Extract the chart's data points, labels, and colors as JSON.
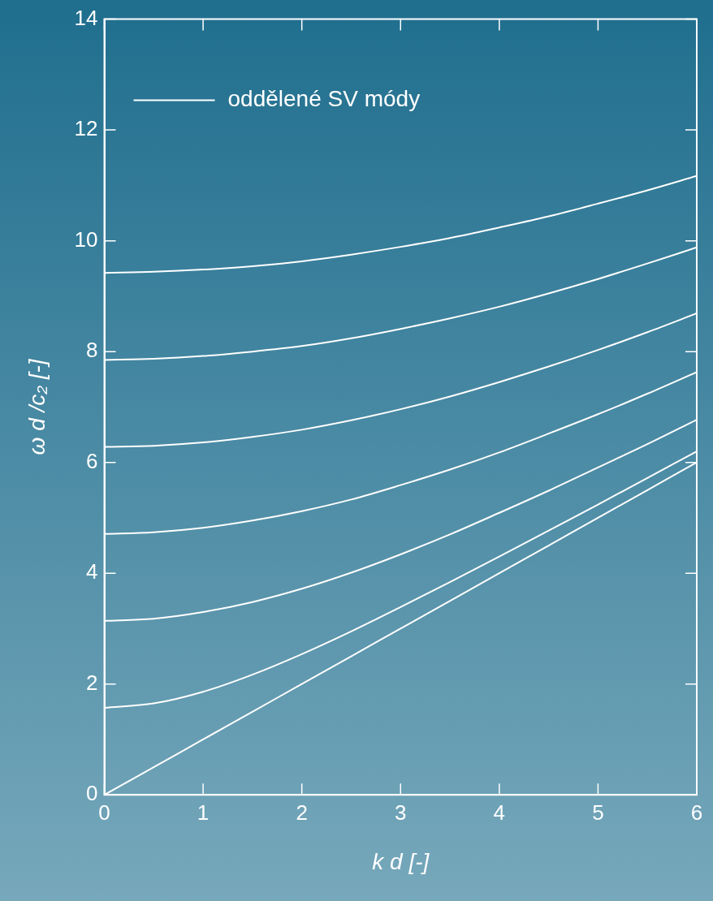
{
  "chart_data": {
    "type": "line",
    "xlabel": "k d [-]",
    "ylabel": "ω d /c₂ [-]",
    "x": [
      0,
      0.5,
      1,
      1.5,
      2,
      2.5,
      3,
      3.5,
      4,
      4.5,
      5,
      5.5,
      6
    ],
    "xlim": [
      0,
      6
    ],
    "xticks": [
      0,
      1,
      2,
      3,
      4,
      5,
      6
    ],
    "ylim": [
      0,
      14
    ],
    "yticks": [
      0,
      2,
      4,
      6,
      8,
      10,
      12,
      14
    ],
    "grid": false,
    "legend": "top left",
    "marker": "none",
    "line_style": "solid",
    "series": [
      {
        "name": "oddělené SV módy",
        "color": "#ffffff",
        "values": [
          0,
          0.5,
          1,
          1.5,
          2,
          2.5,
          3,
          3.5,
          4,
          4.5,
          5,
          5.5,
          6
        ]
      },
      {
        "color": "#ffffff",
        "values": [
          1.57,
          1.65,
          1.86,
          2.17,
          2.54,
          2.95,
          3.39,
          3.84,
          4.3,
          4.77,
          5.24,
          5.72,
          6.2
        ]
      },
      {
        "color": "#ffffff",
        "values": [
          3.14,
          3.18,
          3.3,
          3.48,
          3.72,
          4.01,
          4.34,
          4.7,
          5.09,
          5.49,
          5.91,
          6.33,
          6.77
        ]
      },
      {
        "color": "#ffffff",
        "values": [
          4.71,
          4.74,
          4.82,
          4.95,
          5.12,
          5.33,
          5.59,
          5.87,
          6.18,
          6.52,
          6.87,
          7.24,
          7.63
        ]
      },
      {
        "color": "#ffffff",
        "values": [
          6.28,
          6.3,
          6.36,
          6.46,
          6.59,
          6.76,
          6.96,
          7.19,
          7.45,
          7.73,
          8.03,
          8.35,
          8.69
        ]
      },
      {
        "color": "#ffffff",
        "values": [
          7.85,
          7.87,
          7.92,
          8.0,
          8.1,
          8.24,
          8.41,
          8.6,
          8.81,
          9.05,
          9.31,
          9.59,
          9.88
        ]
      },
      {
        "color": "#ffffff",
        "values": [
          9.42,
          9.44,
          9.48,
          9.54,
          9.63,
          9.75,
          9.89,
          10.05,
          10.24,
          10.44,
          10.67,
          10.91,
          11.17
        ]
      }
    ]
  }
}
